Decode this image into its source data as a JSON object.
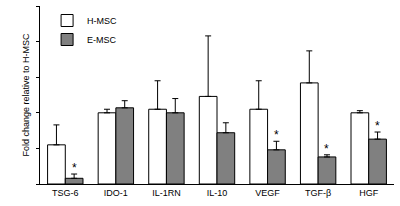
{
  "chart_data": {
    "type": "bar",
    "y_label": "Fold change relative to H-MSC",
    "categories": [
      "TSG-6",
      "IDO-1",
      "IL-1RN",
      "IL-10",
      "VEGF",
      "TGF-β",
      "HGF"
    ],
    "series": [
      {
        "name": "H-MSC",
        "color": "#ffffff",
        "values": [
          0.55,
          1.0,
          1.05,
          1.23,
          1.05,
          1.42,
          1.0
        ],
        "errors": [
          0.28,
          0.05,
          0.4,
          0.85,
          0.4,
          0.45,
          0.03
        ]
      },
      {
        "name": "E-MSC",
        "color": "#808080",
        "values": [
          0.08,
          1.07,
          1.0,
          0.72,
          0.48,
          0.38,
          0.63
        ],
        "errors": [
          0.06,
          0.1,
          0.2,
          0.14,
          0.12,
          0.03,
          0.1
        ]
      }
    ],
    "annotations": [
      {
        "category": "TSG-6",
        "series": "E-MSC",
        "text": "*"
      },
      {
        "category": "VEGF",
        "series": "E-MSC",
        "text": "*"
      },
      {
        "category": "TGF-β",
        "series": "E-MSC",
        "text": "*"
      },
      {
        "category": "HGF",
        "series": "E-MSC",
        "text": "*"
      }
    ],
    "ylim": [
      0,
      2.5
    ],
    "yticks": [
      0,
      0.5,
      1,
      1.5,
      2,
      2.5
    ],
    "tick_labels": "x",
    "grid": false,
    "legend": "upper left"
  }
}
